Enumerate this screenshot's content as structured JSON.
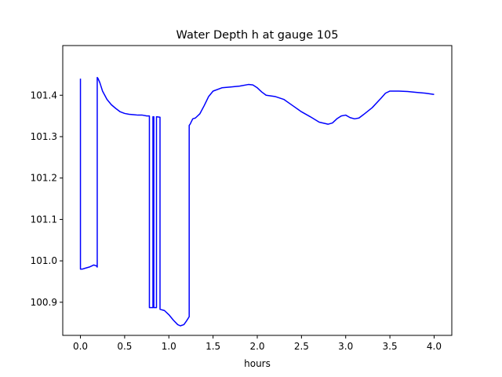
{
  "chart_data": {
    "type": "line",
    "title": "Water Depth h at gauge 105",
    "xlabel": "hours",
    "ylabel": "",
    "xlim": [
      -0.2,
      4.2
    ],
    "ylim": [
      100.82,
      101.52
    ],
    "xticks": [
      0.0,
      0.5,
      1.0,
      1.5,
      2.0,
      2.5,
      3.0,
      3.5,
      4.0
    ],
    "xtick_labels": [
      "0.0",
      "0.5",
      "1.0",
      "1.5",
      "2.0",
      "2.5",
      "3.0",
      "3.5",
      "4.0"
    ],
    "yticks": [
      100.9,
      101.0,
      101.1,
      101.2,
      101.3,
      101.4
    ],
    "ytick_labels": [
      "100.9",
      "101.0",
      "101.1",
      "101.2",
      "101.3",
      "101.4"
    ],
    "grid": false,
    "legend": "none",
    "series": [
      {
        "color": "#0000ff",
        "x": [
          0.0,
          0.0,
          0.02,
          0.05,
          0.1,
          0.15,
          0.18,
          0.19,
          0.19,
          0.2,
          0.22,
          0.25,
          0.3,
          0.35,
          0.4,
          0.45,
          0.5,
          0.55,
          0.6,
          0.65,
          0.7,
          0.75,
          0.78,
          0.78,
          0.82,
          0.82,
          0.83,
          0.83,
          0.86,
          0.86,
          0.9,
          0.9,
          0.95,
          1.0,
          1.05,
          1.1,
          1.13,
          1.17,
          1.2,
          1.23,
          1.23,
          1.24,
          1.27,
          1.3,
          1.35,
          1.4,
          1.45,
          1.5,
          1.6,
          1.7,
          1.8,
          1.9,
          1.95,
          2.0,
          2.05,
          2.1,
          2.2,
          2.3,
          2.4,
          2.5,
          2.6,
          2.7,
          2.8,
          2.85,
          2.9,
          2.95,
          3.0,
          3.05,
          3.1,
          3.15,
          3.2,
          3.3,
          3.4,
          3.45,
          3.5,
          3.6,
          3.7,
          3.8,
          3.9,
          4.0
        ],
        "y": [
          101.44,
          100.98,
          100.98,
          100.982,
          100.985,
          100.99,
          100.988,
          100.985,
          101.443,
          101.44,
          101.43,
          101.41,
          101.39,
          101.377,
          101.368,
          101.36,
          101.356,
          101.354,
          101.353,
          101.352,
          101.352,
          101.35,
          101.35,
          100.887,
          100.887,
          101.348,
          101.348,
          100.887,
          100.887,
          101.348,
          101.347,
          100.883,
          100.88,
          100.87,
          100.857,
          100.846,
          100.843,
          100.846,
          100.855,
          100.865,
          101.327,
          101.33,
          101.343,
          101.345,
          101.355,
          101.375,
          101.397,
          101.41,
          101.418,
          101.42,
          101.422,
          101.426,
          101.425,
          101.418,
          101.408,
          101.4,
          101.397,
          101.39,
          101.375,
          101.36,
          101.348,
          101.335,
          101.33,
          101.333,
          101.343,
          101.35,
          101.352,
          101.346,
          101.343,
          101.345,
          101.353,
          101.37,
          101.393,
          101.405,
          101.41,
          101.41,
          101.409,
          101.407,
          101.405,
          101.402
        ]
      }
    ]
  }
}
